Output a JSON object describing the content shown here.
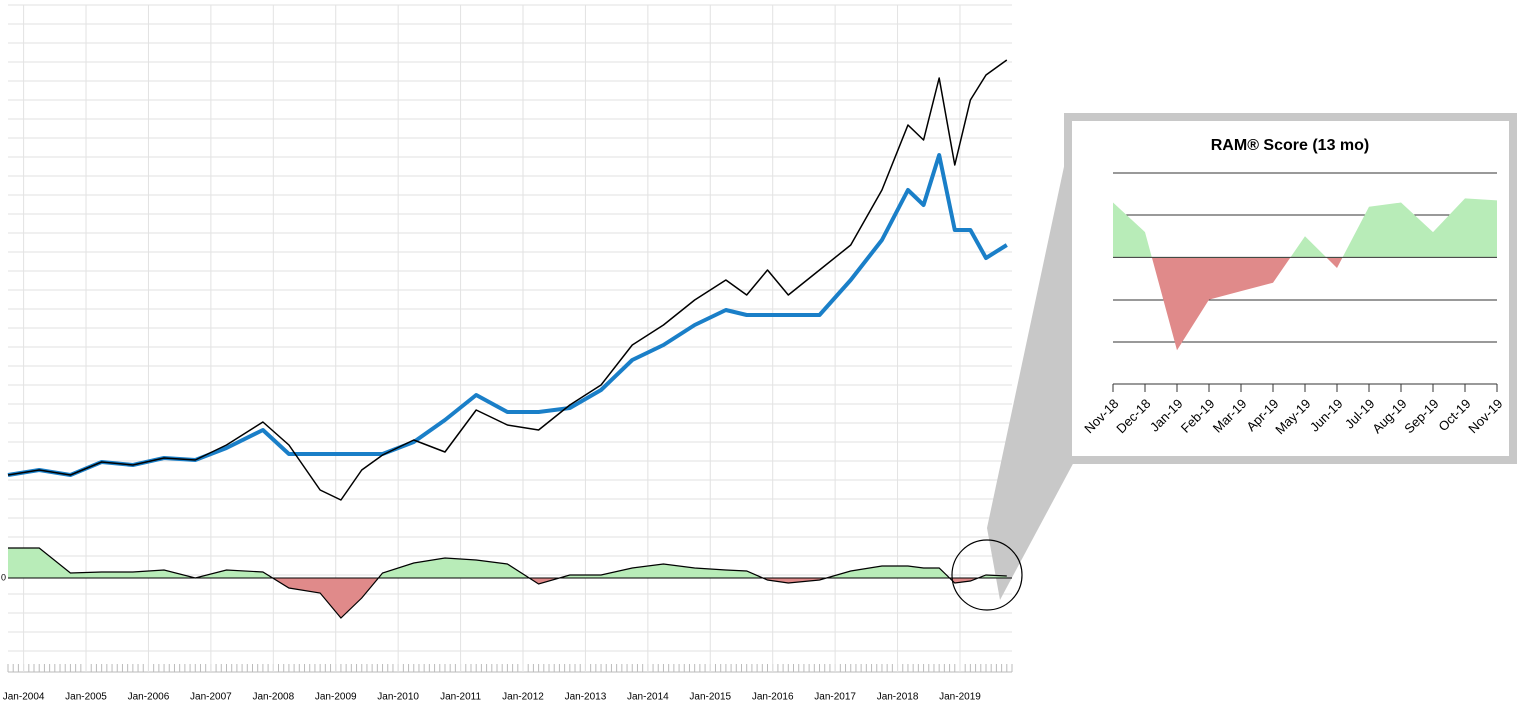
{
  "chart_data": [
    {
      "type": "line",
      "x": [
        "2003-10",
        "2004-04",
        "2004-10",
        "2005-04",
        "2005-10",
        "2006-04",
        "2006-10",
        "2007-04",
        "2007-11",
        "2008-04",
        "2008-10",
        "2009-02",
        "2009-06",
        "2009-10",
        "2010-04",
        "2010-10",
        "2011-04",
        "2011-10",
        "2012-04",
        "2012-10",
        "2013-04",
        "2013-10",
        "2014-04",
        "2014-10",
        "2015-04",
        "2015-08",
        "2015-12",
        "2016-04",
        "2016-10",
        "2017-04",
        "2017-10",
        "2018-03",
        "2018-06",
        "2018-09",
        "2018-12",
        "2019-03",
        "2019-06",
        "2019-10"
      ],
      "xlim": [
        "2003-10",
        "2019-11"
      ],
      "xticks": [
        {
          "value": "2004-01",
          "label": "Jan-2004"
        },
        {
          "value": "2005-01",
          "label": "Jan-2005"
        },
        {
          "value": "2006-01",
          "label": "Jan-2006"
        },
        {
          "value": "2007-01",
          "label": "Jan-2007"
        },
        {
          "value": "2008-01",
          "label": "Jan-2008"
        },
        {
          "value": "2009-01",
          "label": "Jan-2009"
        },
        {
          "value": "2010-01",
          "label": "Jan-2010"
        },
        {
          "value": "2011-01",
          "label": "Jan-2011"
        },
        {
          "value": "2012-01",
          "label": "Jan-2012"
        },
        {
          "value": "2013-01",
          "label": "Jan-2013"
        },
        {
          "value": "2014-01",
          "label": "Jan-2014"
        },
        {
          "value": "2015-01",
          "label": "Jan-2015"
        },
        {
          "value": "2016-01",
          "label": "Jan-2016"
        },
        {
          "value": "2017-01",
          "label": "Jan-2017"
        },
        {
          "value": "2018-01",
          "label": "Jan-2018"
        },
        {
          "value": "2019-01",
          "label": "Jan-2019"
        }
      ],
      "ylim": [
        0,
        104
      ],
      "series": [
        {
          "color": "#1a7fc8",
          "values": [
            11,
            12,
            11,
            13.6,
            13,
            14.4,
            14,
            16.4,
            20,
            15.2,
            15.2,
            15.2,
            15.2,
            15.2,
            17.6,
            22,
            27,
            23.6,
            23.6,
            24.4,
            28,
            34,
            37,
            41,
            44,
            43,
            43,
            43,
            43,
            50,
            58,
            68,
            65,
            75,
            60,
            60,
            54.4,
            57
          ]
        },
        {
          "color": "#000000",
          "values": [
            11,
            12,
            11,
            13.6,
            13,
            14.4,
            14,
            17,
            21.6,
            17,
            8,
            6,
            12,
            15,
            18,
            15.6,
            24,
            21,
            20,
            25,
            29,
            37,
            41,
            46,
            50,
            47,
            52,
            47,
            52,
            57,
            68,
            81,
            78,
            90.4,
            73,
            86,
            91,
            94
          ]
        }
      ]
    },
    {
      "type": "area",
      "x": [
        "2003-10",
        "2004-04",
        "2004-10",
        "2005-04",
        "2005-10",
        "2006-04",
        "2006-10",
        "2007-04",
        "2007-11",
        "2008-04",
        "2008-10",
        "2009-02",
        "2009-06",
        "2009-10",
        "2010-04",
        "2010-10",
        "2011-04",
        "2011-10",
        "2012-04",
        "2012-10",
        "2013-04",
        "2013-10",
        "2014-04",
        "2014-10",
        "2015-04",
        "2015-08",
        "2015-12",
        "2016-04",
        "2016-10",
        "2017-04",
        "2017-10",
        "2018-03",
        "2018-06",
        "2018-09",
        "2018-12",
        "2019-03",
        "2019-06",
        "2019-10"
      ],
      "values": [
        3,
        3,
        0.5,
        0.6,
        0.6,
        0.8,
        0,
        0.8,
        0.6,
        -1,
        -1.5,
        -4,
        -2,
        0.5,
        1.5,
        2,
        1.8,
        1.4,
        -0.6,
        0.3,
        0.3,
        1,
        1.4,
        1,
        0.8,
        0.7,
        -0.2,
        -0.5,
        -0.2,
        0.7,
        1.2,
        1.2,
        1,
        1,
        -0.5,
        -0.3,
        0.3,
        0.2
      ],
      "ylim": [
        -5,
        4
      ],
      "yticks": [
        0
      ],
      "positive_color": "#b8ecb8",
      "negative_color": "#e08a8a"
    },
    {
      "type": "area",
      "title": "RAM® Score (13 mo)",
      "categories": [
        "Nov-18",
        "Dec-18",
        "Jan-19",
        "Feb-19",
        "Mar-19",
        "Apr-19",
        "May-19",
        "Jun-19",
        "Jul-19",
        "Aug-19",
        "Sep-19",
        "Oct-19",
        "Nov-19"
      ],
      "values": [
        1.3,
        0.6,
        -2.2,
        -1,
        -0.8,
        -0.6,
        0.5,
        -0.25,
        1.2,
        1.3,
        0.6,
        1.4,
        1.35
      ],
      "ylim": [
        -3,
        2
      ],
      "positive_color": "#b8ecb8",
      "negative_color": "#e08a8a"
    }
  ]
}
